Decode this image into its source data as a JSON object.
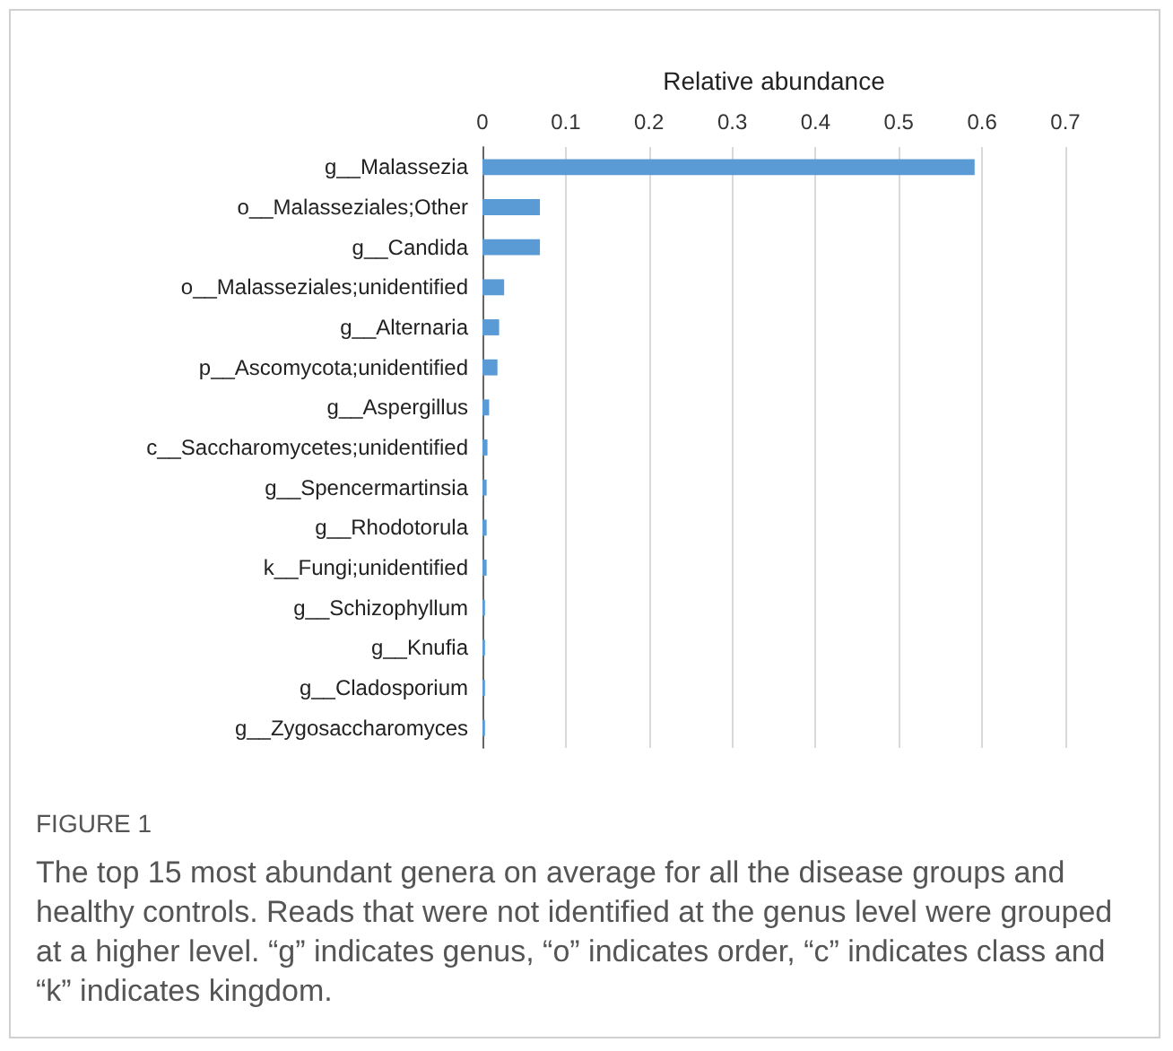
{
  "chart_data": {
    "type": "bar",
    "orientation": "horizontal",
    "xlabel": "Relative abundance",
    "categories": [
      "g__Malassezia",
      "o__Malasseziales;Other",
      "g__Candida",
      "o__Malasseziales;unidentified",
      "g__Alternaria",
      "p__Ascomycota;unidentified",
      "g__Aspergillus",
      "c__Saccharomycetes;unidentified",
      "g__Spencermartinsia",
      "g__Rhodotorula",
      "k__Fungi;unidentified",
      "g__Schizophyllum",
      "g__Knufia",
      "g__Cladosporium",
      "g__Zygosaccharomyces"
    ],
    "values": [
      0.591,
      0.069,
      0.069,
      0.026,
      0.02,
      0.018,
      0.008,
      0.006,
      0.005,
      0.005,
      0.005,
      0.003,
      0.003,
      0.003,
      0.003
    ],
    "color": "#5b9bd5",
    "xlim": [
      0,
      0.7
    ],
    "xticks": [
      0,
      0.1,
      0.2,
      0.3,
      0.4,
      0.5,
      0.6,
      0.7
    ],
    "grid": "x",
    "annotations": [
      "FIGURE 1",
      "The top 15 most abundant genera on average for all the disease groups and healthy controls. Reads that were not identified at the genus level were grouped at a higher level. “g” indicates genus, “o” indicates order, “c” indicates class and “k” indicates kingdom."
    ]
  }
}
